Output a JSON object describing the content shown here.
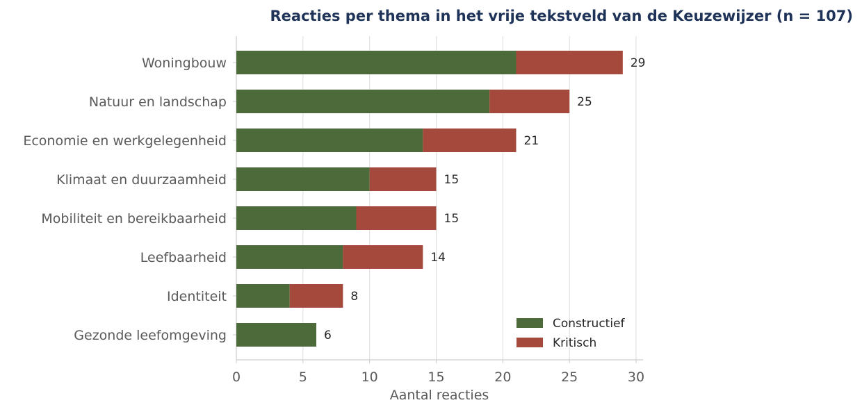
{
  "chart_data": {
    "type": "bar",
    "orientation": "horizontal",
    "stacked": true,
    "title": "Reacties per thema in het vrije tekstveld van de Keuzewijzer (n = 107)",
    "xlabel": "Aantal reacties",
    "ylabel": "",
    "xlim": [
      0,
      30
    ],
    "xticks": [
      0,
      5,
      10,
      15,
      20,
      25,
      30
    ],
    "grid": "vertical",
    "legend_position": "bottom-right",
    "categories": [
      "Woningbouw",
      "Natuur en landschap",
      "Economie en werkgelegenheid",
      "Klimaat en duurzaamheid",
      "Mobiliteit en bereikbaarheid",
      "Leefbaarheid",
      "Identiteit",
      "Gezonde leefomgeving"
    ],
    "series": [
      {
        "name": "Constructief",
        "color": "#4d6b3a",
        "values": [
          21,
          19,
          14,
          10,
          9,
          8,
          4,
          6
        ]
      },
      {
        "name": "Kritisch",
        "color": "#a5493d",
        "values": [
          8,
          6,
          7,
          5,
          6,
          6,
          4,
          0
        ]
      }
    ],
    "totals": [
      29,
      25,
      21,
      15,
      15,
      14,
      8,
      6
    ],
    "title_color": "#1f3358"
  }
}
